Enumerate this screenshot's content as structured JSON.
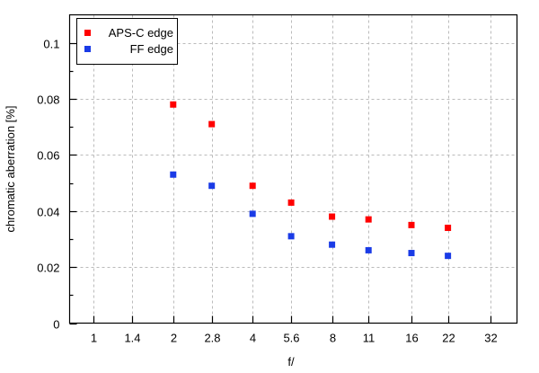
{
  "chart_data": {
    "type": "scatter",
    "title": "",
    "xlabel": "f/",
    "ylabel": "chromatic aberration [%]",
    "x_scale": "log2",
    "xlim": [
      0.81,
      40.2
    ],
    "ylim": [
      0,
      0.11
    ],
    "grid": true,
    "legend_position": "top-left",
    "x_ticks": [
      1,
      1.4,
      2,
      2.8,
      4,
      5.6,
      8,
      11,
      16,
      22,
      32
    ],
    "x_tick_labels": [
      "1",
      "1.4",
      "2",
      "2.8",
      "4",
      "5.6",
      "8",
      "11",
      "16",
      "22",
      "32"
    ],
    "y_ticks": [
      0,
      0.02,
      0.04,
      0.06,
      0.08,
      0.1
    ],
    "y_tick_labels": [
      "0",
      "0.02",
      "0.04",
      "0.06",
      "0.08",
      "0.1"
    ],
    "y_minor_ticks": [
      0.01,
      0.03,
      0.05,
      0.07,
      0.09
    ],
    "series": [
      {
        "name": "APS-C edge",
        "color": "#ff0000",
        "x": [
          2,
          2.8,
          4,
          5.6,
          8,
          11,
          16,
          22
        ],
        "values": [
          0.078,
          0.071,
          0.049,
          0.043,
          0.038,
          0.037,
          0.035,
          0.034
        ]
      },
      {
        "name": "FF edge",
        "color": "#1a3be6",
        "x": [
          2,
          2.8,
          4,
          5.6,
          8,
          11,
          16,
          22
        ],
        "values": [
          0.053,
          0.049,
          0.039,
          0.031,
          0.028,
          0.026,
          0.025,
          0.024
        ]
      }
    ]
  }
}
